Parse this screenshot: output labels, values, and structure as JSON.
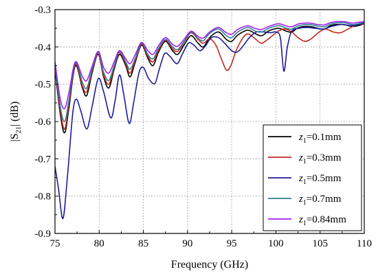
{
  "chart_data": {
    "type": "line",
    "xlabel": "Frequency (GHz)",
    "ylabel": "|S21| (dB)",
    "ylabel_parts": {
      "pre": "|S",
      "sub": "21",
      "post": "| (dB)"
    },
    "xlim": [
      75,
      110
    ],
    "ylim": [
      -0.9,
      -0.3
    ],
    "xticks": [
      75,
      80,
      85,
      90,
      95,
      100,
      105,
      110
    ],
    "yticks": [
      -0.9,
      -0.8,
      -0.7,
      -0.6,
      -0.5,
      -0.4,
      -0.3
    ],
    "xtick_labels": [
      "75",
      "80",
      "85",
      "90",
      "95",
      "100",
      "105",
      "110"
    ],
    "ytick_labels": [
      "-0.9",
      "-0.8",
      "-0.7",
      "-0.6",
      "-0.5",
      "-0.4",
      "-0.3"
    ],
    "grid": true,
    "legend_position": "lower-right",
    "series": [
      {
        "name": "z1=0.1mm",
        "label_var": "z",
        "label_sub": "1",
        "label_rest": "=0.1mm",
        "color": "#000000",
        "points": [
          [
            75,
            -0.46
          ],
          [
            75.6,
            -0.58
          ],
          [
            76.1,
            -0.63
          ],
          [
            76.6,
            -0.56
          ],
          [
            77.3,
            -0.45
          ],
          [
            78.1,
            -0.51
          ],
          [
            78.6,
            -0.53
          ],
          [
            79.2,
            -0.47
          ],
          [
            79.9,
            -0.42
          ],
          [
            80.5,
            -0.48
          ],
          [
            81.1,
            -0.51
          ],
          [
            81.7,
            -0.46
          ],
          [
            82.3,
            -0.42
          ],
          [
            83,
            -0.45
          ],
          [
            83.5,
            -0.48
          ],
          [
            84.1,
            -0.44
          ],
          [
            84.8,
            -0.395
          ],
          [
            85.5,
            -0.43
          ],
          [
            86.1,
            -0.45
          ],
          [
            86.7,
            -0.415
          ],
          [
            87.5,
            -0.385
          ],
          [
            88.3,
            -0.41
          ],
          [
            88.9,
            -0.42
          ],
          [
            89.6,
            -0.395
          ],
          [
            90.4,
            -0.37
          ],
          [
            91.2,
            -0.39
          ],
          [
            91.8,
            -0.4
          ],
          [
            92.5,
            -0.375
          ],
          [
            93.5,
            -0.36
          ],
          [
            94.4,
            -0.38
          ],
          [
            95,
            -0.385
          ],
          [
            95.7,
            -0.368
          ],
          [
            96.8,
            -0.355
          ],
          [
            97.7,
            -0.365
          ],
          [
            98.4,
            -0.37
          ],
          [
            99.2,
            -0.357
          ],
          [
            100.3,
            -0.35
          ],
          [
            101.2,
            -0.358
          ],
          [
            101.8,
            -0.36
          ],
          [
            102.6,
            -0.348
          ],
          [
            103.8,
            -0.345
          ],
          [
            104.7,
            -0.35
          ],
          [
            105.5,
            -0.352
          ],
          [
            106.3,
            -0.342
          ],
          [
            107.6,
            -0.34
          ],
          [
            108.6,
            -0.345
          ],
          [
            109.3,
            -0.343
          ],
          [
            110,
            -0.338
          ]
        ]
      },
      {
        "name": "z1=0.3mm",
        "label_var": "z",
        "label_sub": "1",
        "label_rest": "=0.3mm",
        "color": "#c0281c",
        "points": [
          [
            75,
            -0.45
          ],
          [
            75.6,
            -0.57
          ],
          [
            76.1,
            -0.62
          ],
          [
            76.6,
            -0.55
          ],
          [
            77.3,
            -0.445
          ],
          [
            78.1,
            -0.505
          ],
          [
            78.6,
            -0.52
          ],
          [
            79.2,
            -0.465
          ],
          [
            79.9,
            -0.418
          ],
          [
            80.5,
            -0.475
          ],
          [
            81.1,
            -0.5
          ],
          [
            81.7,
            -0.455
          ],
          [
            82.3,
            -0.415
          ],
          [
            83,
            -0.445
          ],
          [
            83.5,
            -0.47
          ],
          [
            84.1,
            -0.435
          ],
          [
            84.8,
            -0.392
          ],
          [
            85.5,
            -0.425
          ],
          [
            86.1,
            -0.44
          ],
          [
            86.7,
            -0.41
          ],
          [
            87.5,
            -0.382
          ],
          [
            88.3,
            -0.405
          ],
          [
            88.9,
            -0.412
          ],
          [
            89.6,
            -0.388
          ],
          [
            90.4,
            -0.362
          ],
          [
            91.2,
            -0.38
          ],
          [
            91.8,
            -0.39
          ],
          [
            92.5,
            -0.378
          ],
          [
            93.2,
            -0.395
          ],
          [
            93.8,
            -0.43
          ],
          [
            94.4,
            -0.462
          ],
          [
            94.9,
            -0.45
          ],
          [
            95.5,
            -0.41
          ],
          [
            96.2,
            -0.378
          ],
          [
            96.8,
            -0.365
          ],
          [
            97.5,
            -0.375
          ],
          [
            98.3,
            -0.39
          ],
          [
            98.9,
            -0.383
          ],
          [
            99.6,
            -0.37
          ],
          [
            100.3,
            -0.357
          ],
          [
            101,
            -0.352
          ],
          [
            101.7,
            -0.358
          ],
          [
            102.5,
            -0.375
          ],
          [
            103.3,
            -0.385
          ],
          [
            104,
            -0.378
          ],
          [
            104.8,
            -0.362
          ],
          [
            105.6,
            -0.352
          ],
          [
            106.5,
            -0.36
          ],
          [
            107.3,
            -0.362
          ],
          [
            108.1,
            -0.353
          ],
          [
            109,
            -0.342
          ],
          [
            110,
            -0.338
          ]
        ]
      },
      {
        "name": "z1=0.5mm",
        "label_var": "z",
        "label_sub": "1",
        "label_rest": "=0.5mm",
        "color": "#1a1a9a",
        "points": [
          [
            75,
            -0.72
          ],
          [
            75.4,
            -0.78
          ],
          [
            75.9,
            -0.86
          ],
          [
            76.4,
            -0.75
          ],
          [
            77,
            -0.58
          ],
          [
            77.4,
            -0.54
          ],
          [
            77.9,
            -0.57
          ],
          [
            78.6,
            -0.62
          ],
          [
            79.2,
            -0.56
          ],
          [
            79.9,
            -0.485
          ],
          [
            80.5,
            -0.52
          ],
          [
            81.3,
            -0.59
          ],
          [
            81.8,
            -0.545
          ],
          [
            82.3,
            -0.475
          ],
          [
            82.8,
            -0.53
          ],
          [
            83.4,
            -0.605
          ],
          [
            83.9,
            -0.55
          ],
          [
            84.5,
            -0.47
          ],
          [
            85,
            -0.455
          ],
          [
            85.6,
            -0.485
          ],
          [
            86.3,
            -0.498
          ],
          [
            86.8,
            -0.46
          ],
          [
            87.4,
            -0.418
          ],
          [
            88,
            -0.425
          ],
          [
            88.8,
            -0.445
          ],
          [
            89.4,
            -0.42
          ],
          [
            90.1,
            -0.39
          ],
          [
            90.7,
            -0.395
          ],
          [
            91.4,
            -0.41
          ],
          [
            92,
            -0.398
          ],
          [
            92.7,
            -0.375
          ],
          [
            93.5,
            -0.375
          ],
          [
            94.2,
            -0.39
          ],
          [
            95,
            -0.41
          ],
          [
            95.6,
            -0.414
          ],
          [
            96.2,
            -0.4
          ],
          [
            97,
            -0.375
          ],
          [
            97.8,
            -0.36
          ],
          [
            98.6,
            -0.36
          ],
          [
            99.4,
            -0.362
          ],
          [
            100,
            -0.36
          ],
          [
            100.5,
            -0.375
          ],
          [
            100.9,
            -0.465
          ],
          [
            101.3,
            -0.4
          ],
          [
            101.8,
            -0.358
          ],
          [
            102.6,
            -0.35
          ],
          [
            103.5,
            -0.348
          ],
          [
            104.5,
            -0.35
          ],
          [
            105.4,
            -0.352
          ],
          [
            106.3,
            -0.345
          ],
          [
            107.4,
            -0.34
          ],
          [
            108.6,
            -0.343
          ],
          [
            109.4,
            -0.34
          ],
          [
            110,
            -0.335
          ]
        ]
      },
      {
        "name": "z1=0.7mm",
        "label_var": "z",
        "label_sub": "1",
        "label_rest": "=0.7mm",
        "color": "#2f7f8f",
        "points": [
          [
            75,
            -0.45
          ],
          [
            75.6,
            -0.56
          ],
          [
            76.1,
            -0.6
          ],
          [
            76.6,
            -0.54
          ],
          [
            77.3,
            -0.442
          ],
          [
            78.1,
            -0.495
          ],
          [
            78.6,
            -0.51
          ],
          [
            79.2,
            -0.46
          ],
          [
            79.9,
            -0.415
          ],
          [
            80.5,
            -0.468
          ],
          [
            81.1,
            -0.49
          ],
          [
            81.7,
            -0.45
          ],
          [
            82.3,
            -0.412
          ],
          [
            83,
            -0.44
          ],
          [
            83.5,
            -0.46
          ],
          [
            84.1,
            -0.43
          ],
          [
            84.8,
            -0.39
          ],
          [
            85.5,
            -0.42
          ],
          [
            86.1,
            -0.432
          ],
          [
            86.7,
            -0.405
          ],
          [
            87.5,
            -0.38
          ],
          [
            88.3,
            -0.4
          ],
          [
            88.9,
            -0.407
          ],
          [
            89.6,
            -0.386
          ],
          [
            90.4,
            -0.36
          ],
          [
            91.2,
            -0.377
          ],
          [
            91.8,
            -0.383
          ],
          [
            92.5,
            -0.364
          ],
          [
            93.5,
            -0.352
          ],
          [
            94.4,
            -0.37
          ],
          [
            95,
            -0.375
          ],
          [
            95.7,
            -0.36
          ],
          [
            96.8,
            -0.348
          ],
          [
            97.7,
            -0.358
          ],
          [
            98.4,
            -0.36
          ],
          [
            99.2,
            -0.35
          ],
          [
            100.3,
            -0.343
          ],
          [
            101.2,
            -0.35
          ],
          [
            101.8,
            -0.352
          ],
          [
            102.6,
            -0.343
          ],
          [
            103.8,
            -0.34
          ],
          [
            104.7,
            -0.344
          ],
          [
            105.5,
            -0.346
          ],
          [
            106.3,
            -0.338
          ],
          [
            107.6,
            -0.335
          ],
          [
            108.6,
            -0.34
          ],
          [
            109.3,
            -0.338
          ],
          [
            110,
            -0.334
          ]
        ]
      },
      {
        "name": "z1=0.84mm",
        "label_var": "z",
        "label_sub": "1",
        "label_rest": "=0.84mm",
        "color": "#a020f0",
        "points": [
          [
            75,
            -0.44
          ],
          [
            75.6,
            -0.54
          ],
          [
            76.1,
            -0.565
          ],
          [
            76.6,
            -0.52
          ],
          [
            77.3,
            -0.44
          ],
          [
            78.1,
            -0.48
          ],
          [
            78.6,
            -0.49
          ],
          [
            79.2,
            -0.452
          ],
          [
            79.9,
            -0.412
          ],
          [
            80.5,
            -0.455
          ],
          [
            81.1,
            -0.47
          ],
          [
            81.7,
            -0.44
          ],
          [
            82.3,
            -0.41
          ],
          [
            83,
            -0.432
          ],
          [
            83.5,
            -0.445
          ],
          [
            84.1,
            -0.42
          ],
          [
            84.8,
            -0.388
          ],
          [
            85.5,
            -0.41
          ],
          [
            86.1,
            -0.42
          ],
          [
            86.7,
            -0.398
          ],
          [
            87.5,
            -0.375
          ],
          [
            88.3,
            -0.393
          ],
          [
            88.9,
            -0.398
          ],
          [
            89.6,
            -0.38
          ],
          [
            90.4,
            -0.358
          ],
          [
            91.2,
            -0.372
          ],
          [
            91.8,
            -0.376
          ],
          [
            92.5,
            -0.36
          ],
          [
            93.5,
            -0.348
          ],
          [
            94.4,
            -0.362
          ],
          [
            95,
            -0.366
          ],
          [
            95.7,
            -0.353
          ],
          [
            96.8,
            -0.343
          ],
          [
            97.7,
            -0.351
          ],
          [
            98.4,
            -0.353
          ],
          [
            99.2,
            -0.345
          ],
          [
            100.3,
            -0.338
          ],
          [
            101.2,
            -0.344
          ],
          [
            101.8,
            -0.346
          ],
          [
            102.6,
            -0.338
          ],
          [
            103.8,
            -0.336
          ],
          [
            104.7,
            -0.34
          ],
          [
            105.5,
            -0.341
          ],
          [
            106.3,
            -0.334
          ],
          [
            107.6,
            -0.332
          ],
          [
            108.6,
            -0.336
          ],
          [
            109.3,
            -0.334
          ],
          [
            110,
            -0.332
          ]
        ]
      }
    ]
  }
}
